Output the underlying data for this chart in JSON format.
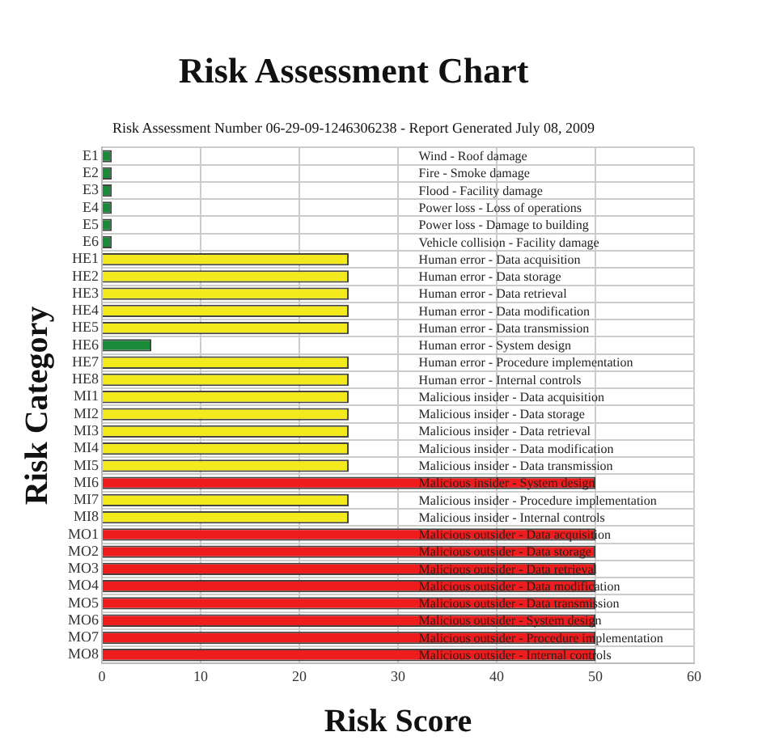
{
  "chart_data": {
    "type": "bar",
    "orientation": "horizontal",
    "title": "Risk Assessment Chart",
    "subtitle": "Risk Assessment Number 06-29-09-1246306238 - Report Generated July 08, 2009",
    "xlabel": "Risk Score",
    "ylabel": "Risk Category",
    "categories": [
      "E1",
      "E2",
      "E3",
      "E4",
      "E5",
      "E6",
      "HE1",
      "HE2",
      "HE3",
      "HE4",
      "HE5",
      "HE6",
      "HE7",
      "HE8",
      "MI1",
      "MI2",
      "MI3",
      "MI4",
      "MI5",
      "MI6",
      "MI7",
      "MI8",
      "MO1",
      "MO2",
      "MO3",
      "MO4",
      "MO5",
      "MO6",
      "MO7",
      "MO8"
    ],
    "values": [
      1,
      1,
      1,
      1,
      1,
      1,
      25,
      25,
      25,
      25,
      25,
      5,
      25,
      25,
      25,
      25,
      25,
      25,
      25,
      50,
      25,
      25,
      50,
      50,
      50,
      50,
      50,
      50,
      50,
      50
    ],
    "colors": [
      "#1a8a3a",
      "#1a8a3a",
      "#1a8a3a",
      "#1a8a3a",
      "#1a8a3a",
      "#1a8a3a",
      "#f2ea1c",
      "#f2ea1c",
      "#f2ea1c",
      "#f2ea1c",
      "#f2ea1c",
      "#1a8a3a",
      "#f2ea1c",
      "#f2ea1c",
      "#f2ea1c",
      "#f2ea1c",
      "#f2ea1c",
      "#f2ea1c",
      "#f2ea1c",
      "#ee1c1c",
      "#f2ea1c",
      "#f2ea1c",
      "#ee1c1c",
      "#ee1c1c",
      "#ee1c1c",
      "#ee1c1c",
      "#ee1c1c",
      "#ee1c1c",
      "#ee1c1c",
      "#ee1c1c"
    ],
    "xlim": [
      0,
      60
    ],
    "xticks": [
      0,
      10,
      20,
      30,
      40,
      50,
      60
    ],
    "grid": true,
    "legend": false,
    "annotations": [
      "Wind - Roof damage",
      "Fire - Smoke damage",
      "Flood - Facility damage",
      "Power loss - Loss of operations",
      "Power loss - Damage to building",
      "Vehicle collision - Facility damage",
      "Human error - Data acquisition",
      "Human error - Data storage",
      "Human error - Data retrieval",
      "Human error - Data modification",
      "Human error - Data transmission",
      "Human error - System design",
      "Human error - Procedure implementation",
      "Human error - Internal controls",
      "Malicious insider - Data acquisition",
      "Malicious insider - Data storage",
      "Malicious insider - Data retrieval",
      "Malicious insider - Data modification",
      "Malicious insider - Data transmission",
      "Malicious insider - System design",
      "Malicious insider - Procedure implementation",
      "Malicious insider - Internal controls",
      "Malicious outsider - Data acquisition",
      "Malicious outsider - Data storage",
      "Malicious outsider - Data retrieval",
      "Malicious outsider - Data modification",
      "Malicious outsider - Data transmission",
      "Malicious outsider - System design",
      "Malicious outsider - Procedure implementation",
      "Malicious outsider - Internal controls"
    ]
  }
}
